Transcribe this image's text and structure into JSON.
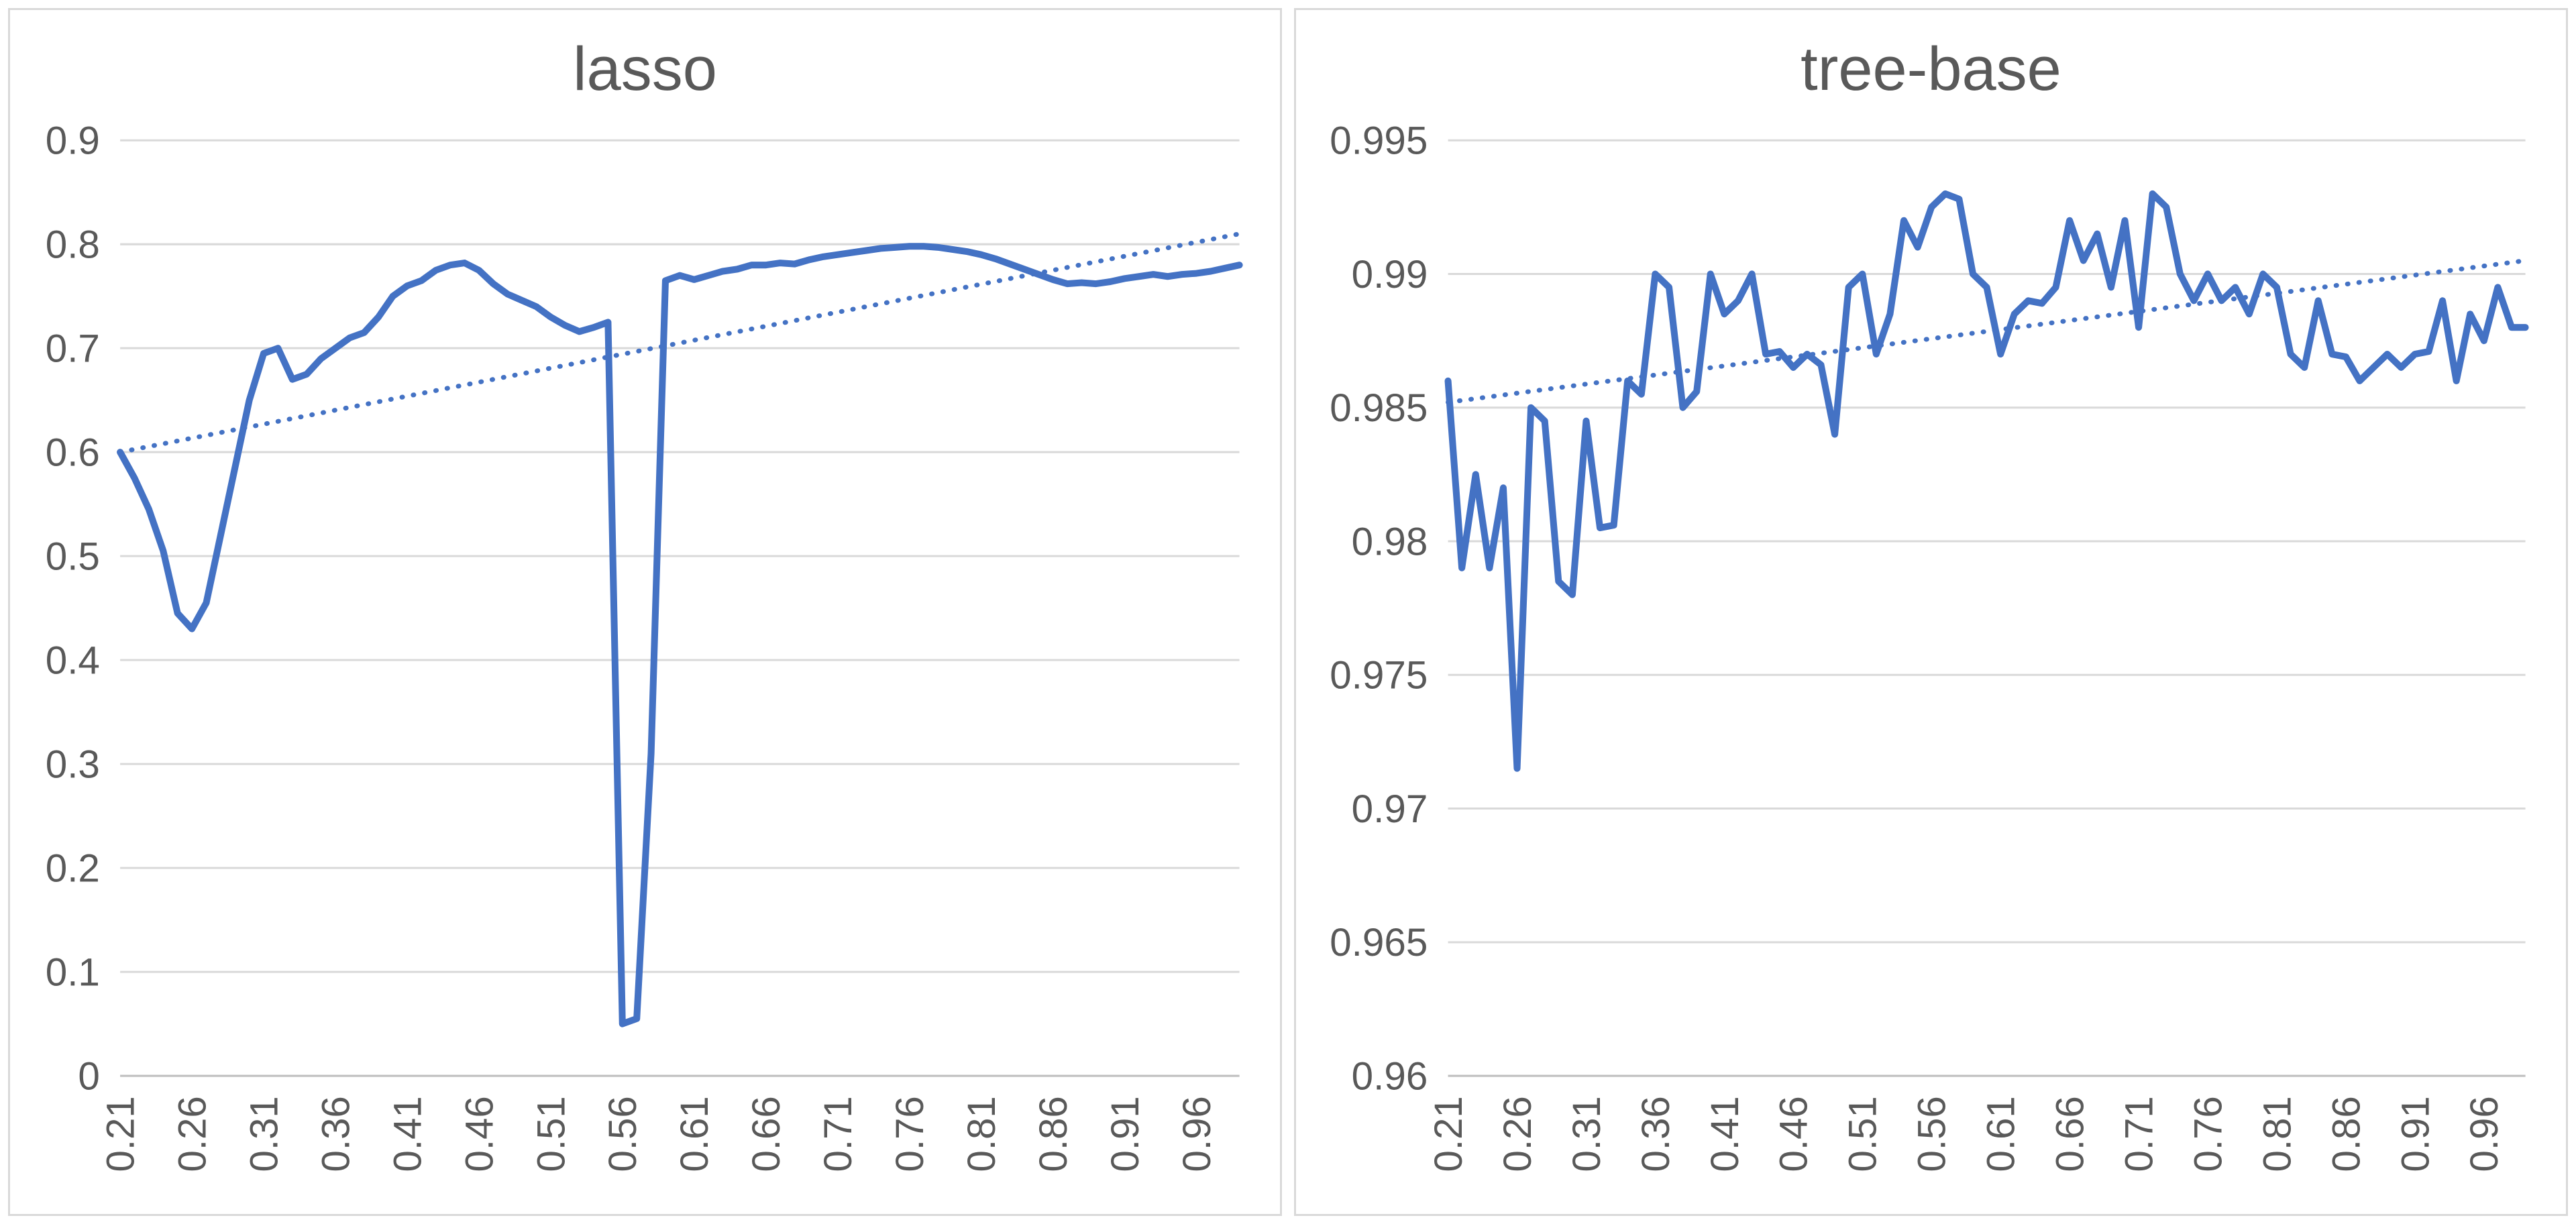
{
  "colors": {
    "line": "#4472C4",
    "trend": "#4472C4",
    "grid": "#D9D9D9",
    "axis": "#BFBFBF",
    "text": "#595959",
    "panel_border": "#D9D9D9",
    "background": "#FFFFFF"
  },
  "chart_data": [
    {
      "type": "line",
      "title": "lasso",
      "xlabel": "",
      "ylabel": "",
      "grid": true,
      "legend": false,
      "xlim": [
        0.21,
        0.99
      ],
      "ylim": [
        0,
        0.9
      ],
      "yticks": [
        0,
        0.1,
        0.2,
        0.3,
        0.4,
        0.5,
        0.6,
        0.7,
        0.8,
        0.9
      ],
      "ytick_labels": [
        "0",
        "0.1",
        "0.2",
        "0.3",
        "0.4",
        "0.5",
        "0.6",
        "0.7",
        "0.8",
        "0.9"
      ],
      "xticks": [
        0.21,
        0.26,
        0.31,
        0.36,
        0.41,
        0.46,
        0.51,
        0.56,
        0.61,
        0.66,
        0.71,
        0.76,
        0.81,
        0.86,
        0.91,
        0.96
      ],
      "xtick_labels": [
        "0.21",
        "0.26",
        "0.31",
        "0.36",
        "0.41",
        "0.46",
        "0.51",
        "0.56",
        "0.61",
        "0.66",
        "0.71",
        "0.76",
        "0.81",
        "0.86",
        "0.91",
        "0.96"
      ],
      "x": [
        0.21,
        0.22,
        0.23,
        0.24,
        0.25,
        0.26,
        0.27,
        0.28,
        0.29,
        0.3,
        0.31,
        0.32,
        0.33,
        0.34,
        0.35,
        0.36,
        0.37,
        0.38,
        0.39,
        0.4,
        0.41,
        0.42,
        0.43,
        0.44,
        0.45,
        0.46,
        0.47,
        0.48,
        0.49,
        0.5,
        0.51,
        0.52,
        0.53,
        0.54,
        0.55,
        0.56,
        0.57,
        0.58,
        0.59,
        0.6,
        0.61,
        0.62,
        0.63,
        0.64,
        0.65,
        0.66,
        0.67,
        0.68,
        0.69,
        0.7,
        0.71,
        0.72,
        0.73,
        0.74,
        0.75,
        0.76,
        0.77,
        0.78,
        0.79,
        0.8,
        0.81,
        0.82,
        0.83,
        0.84,
        0.85,
        0.86,
        0.87,
        0.88,
        0.89,
        0.9,
        0.91,
        0.92,
        0.93,
        0.94,
        0.95,
        0.96,
        0.97,
        0.98,
        0.99
      ],
      "series": [
        {
          "name": "lasso",
          "values": [
            0.6,
            0.575,
            0.545,
            0.505,
            0.445,
            0.43,
            0.455,
            0.52,
            0.585,
            0.65,
            0.695,
            0.7,
            0.67,
            0.675,
            0.69,
            0.7,
            0.71,
            0.715,
            0.73,
            0.75,
            0.76,
            0.765,
            0.775,
            0.78,
            0.782,
            0.775,
            0.762,
            0.752,
            0.746,
            0.74,
            0.73,
            0.722,
            0.716,
            0.72,
            0.725,
            0.05,
            0.055,
            0.31,
            0.765,
            0.77,
            0.766,
            0.77,
            0.774,
            0.776,
            0.78,
            0.78,
            0.782,
            0.781,
            0.785,
            0.788,
            0.79,
            0.792,
            0.794,
            0.796,
            0.797,
            0.798,
            0.798,
            0.797,
            0.795,
            0.793,
            0.79,
            0.786,
            0.781,
            0.776,
            0.771,
            0.766,
            0.762,
            0.763,
            0.762,
            0.764,
            0.767,
            0.769,
            0.771,
            0.769,
            0.771,
            0.772,
            0.774,
            0.777,
            0.78
          ]
        }
      ],
      "trendline": {
        "type": "linear",
        "style": "dotted",
        "x": [
          0.21,
          0.99
        ],
        "y": [
          0.6,
          0.81
        ]
      }
    },
    {
      "type": "line",
      "title": "tree-base",
      "xlabel": "",
      "ylabel": "",
      "grid": true,
      "legend": false,
      "xlim": [
        0.21,
        0.99
      ],
      "ylim": [
        0.96,
        0.995
      ],
      "yticks": [
        0.96,
        0.965,
        0.97,
        0.975,
        0.98,
        0.985,
        0.99,
        0.995
      ],
      "ytick_labels": [
        "0.96",
        "0.965",
        "0.97",
        "0.975",
        "0.98",
        "0.985",
        "0.99",
        "0.995"
      ],
      "xticks": [
        0.21,
        0.26,
        0.31,
        0.36,
        0.41,
        0.46,
        0.51,
        0.56,
        0.61,
        0.66,
        0.71,
        0.76,
        0.81,
        0.86,
        0.91,
        0.96
      ],
      "xtick_labels": [
        "0.21",
        "0.26",
        "0.31",
        "0.36",
        "0.41",
        "0.46",
        "0.51",
        "0.56",
        "0.61",
        "0.66",
        "0.71",
        "0.76",
        "0.81",
        "0.86",
        "0.91",
        "0.96"
      ],
      "x": [
        0.21,
        0.22,
        0.23,
        0.24,
        0.25,
        0.26,
        0.27,
        0.28,
        0.29,
        0.3,
        0.31,
        0.32,
        0.33,
        0.34,
        0.35,
        0.36,
        0.37,
        0.38,
        0.39,
        0.4,
        0.41,
        0.42,
        0.43,
        0.44,
        0.45,
        0.46,
        0.47,
        0.48,
        0.49,
        0.5,
        0.51,
        0.52,
        0.53,
        0.54,
        0.55,
        0.56,
        0.57,
        0.58,
        0.59,
        0.6,
        0.61,
        0.62,
        0.63,
        0.64,
        0.65,
        0.66,
        0.67,
        0.68,
        0.69,
        0.7,
        0.71,
        0.72,
        0.73,
        0.74,
        0.75,
        0.76,
        0.77,
        0.78,
        0.79,
        0.8,
        0.81,
        0.82,
        0.83,
        0.84,
        0.85,
        0.86,
        0.87,
        0.88,
        0.89,
        0.9,
        0.91,
        0.92,
        0.93,
        0.94,
        0.95,
        0.96,
        0.97,
        0.98,
        0.99
      ],
      "series": [
        {
          "name": "tree-base",
          "values": [
            0.986,
            0.979,
            0.9825,
            0.979,
            0.982,
            0.9715,
            0.985,
            0.9845,
            0.9785,
            0.978,
            0.9845,
            0.9805,
            0.9806,
            0.986,
            0.9855,
            0.99,
            0.9895,
            0.985,
            0.9856,
            0.99,
            0.9885,
            0.989,
            0.99,
            0.987,
            0.9871,
            0.9865,
            0.987,
            0.9866,
            0.984,
            0.9895,
            0.99,
            0.987,
            0.9885,
            0.992,
            0.991,
            0.9925,
            0.993,
            0.9928,
            0.99,
            0.9895,
            0.987,
            0.9885,
            0.989,
            0.9889,
            0.9895,
            0.992,
            0.9905,
            0.9915,
            0.9895,
            0.992,
            0.988,
            0.993,
            0.9925,
            0.99,
            0.989,
            0.99,
            0.989,
            0.9895,
            0.9885,
            0.99,
            0.9895,
            0.987,
            0.9865,
            0.989,
            0.987,
            0.9869,
            0.986,
            0.9865,
            0.987,
            0.9865,
            0.987,
            0.9871,
            0.989,
            0.986,
            0.9885,
            0.9875,
            0.9895,
            0.988,
            0.988
          ]
        }
      ],
      "trendline": {
        "type": "linear",
        "style": "dotted",
        "x": [
          0.21,
          0.99
        ],
        "y": [
          0.9852,
          0.9905
        ]
      }
    }
  ]
}
